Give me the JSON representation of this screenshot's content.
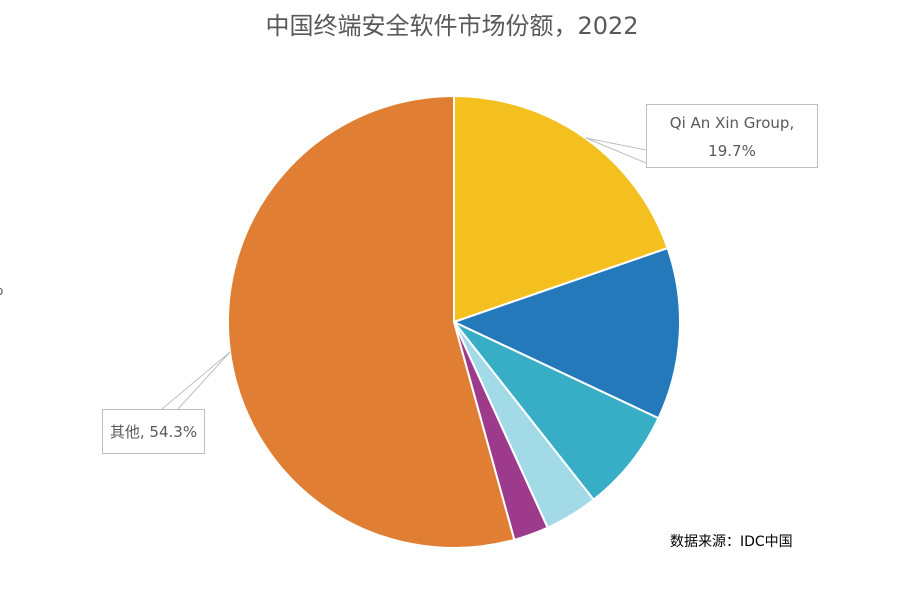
{
  "chart_data": {
    "type": "pie",
    "title": "中国终端安全软件市场份额，2022",
    "slices": [
      {
        "label": "Qi An Xin Group",
        "value": 19.7,
        "color": "#F4C020"
      },
      {
        "label": "",
        "value": 12.3,
        "color": "#2479BB"
      },
      {
        "label": "",
        "value": 7.4,
        "color": "#37AEC6"
      },
      {
        "label": "",
        "value": 3.8,
        "color": "#A3DAE8"
      },
      {
        "label": "",
        "value": 2.5,
        "color": "#9E3A8C"
      },
      {
        "label": "其他",
        "value": 54.3,
        "color": "#E07E34"
      }
    ]
  },
  "labels": {
    "qax_line1": "Qi An Xin Group,",
    "qax_line2": "19.7%",
    "other": "其他, 54.3%"
  },
  "source": "数据来源：IDC中国"
}
